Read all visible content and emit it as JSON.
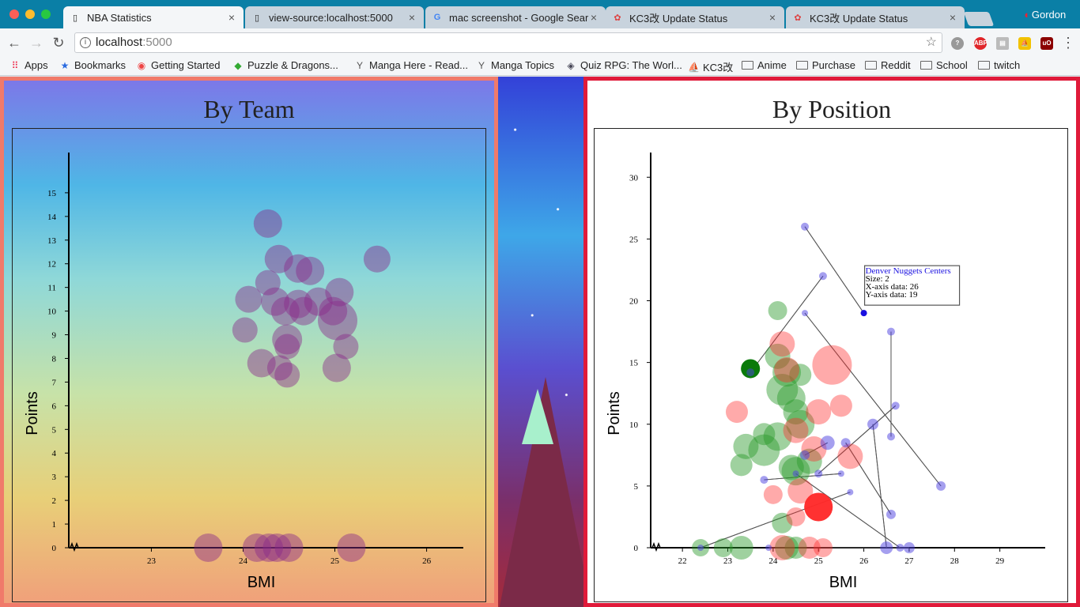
{
  "window": {
    "tabs": [
      {
        "title": "NBA Statistics",
        "favicon": "document-icon",
        "active": true
      },
      {
        "title": "view-source:localhost:5000",
        "favicon": "document-icon",
        "active": false
      },
      {
        "title": "mac screenshot - Google Sear",
        "favicon": "google-icon",
        "active": false
      },
      {
        "title": "KC3改 Update Status",
        "favicon": "kc3-icon",
        "active": false
      },
      {
        "title": "KC3改 Update Status",
        "favicon": "kc3-icon",
        "active": false
      }
    ],
    "profile_name": "Gordon"
  },
  "toolbar": {
    "url_host": "localhost",
    "url_port": ":5000"
  },
  "bookmarks": [
    {
      "label": "Apps",
      "icon": "apps-grid-icon"
    },
    {
      "label": "Bookmarks",
      "icon": "star-icon"
    },
    {
      "label": "Getting Started",
      "icon": "chrome-icon"
    },
    {
      "label": "Puzzle & Dragons...",
      "icon": "pad-icon"
    },
    {
      "label": "Manga Here - Read...",
      "icon": "manga-icon"
    },
    {
      "label": "Manga Topics",
      "icon": "manga-icon"
    },
    {
      "label": "Quiz RPG: The Worl...",
      "icon": "quiz-icon"
    },
    {
      "label": "KC3改",
      "icon": "kc3-icon"
    },
    {
      "label": "Anime",
      "icon": "folder-icon"
    },
    {
      "label": "Purchase",
      "icon": "folder-icon"
    },
    {
      "label": "Reddit",
      "icon": "folder-icon"
    },
    {
      "label": "School",
      "icon": "folder-icon"
    },
    {
      "label": "twitch",
      "icon": "folder-icon"
    }
  ],
  "chart_data": [
    {
      "type": "scatter",
      "title": "By Team",
      "xlabel": "BMI",
      "ylabel": "Points",
      "xlim": [
        22.1,
        26.4
      ],
      "ylim": [
        0,
        16.7
      ],
      "x_ticks": [
        23,
        24,
        25,
        26
      ],
      "y_ticks": [
        0,
        1,
        2,
        3,
        4,
        5,
        6,
        7,
        8,
        9,
        10,
        11,
        12,
        13,
        14,
        15
      ],
      "color": "#8a2a8a",
      "points": [
        {
          "x": 24.27,
          "y": 13.7,
          "r": 18
        },
        {
          "x": 24.39,
          "y": 12.2,
          "r": 18
        },
        {
          "x": 24.6,
          "y": 11.8,
          "r": 18
        },
        {
          "x": 24.73,
          "y": 11.7,
          "r": 18
        },
        {
          "x": 25.46,
          "y": 12.2,
          "r": 17
        },
        {
          "x": 24.27,
          "y": 11.2,
          "r": 16
        },
        {
          "x": 24.06,
          "y": 10.5,
          "r": 17
        },
        {
          "x": 24.35,
          "y": 10.4,
          "r": 18
        },
        {
          "x": 24.6,
          "y": 10.3,
          "r": 18
        },
        {
          "x": 24.82,
          "y": 10.4,
          "r": 18
        },
        {
          "x": 25.05,
          "y": 10.8,
          "r": 18
        },
        {
          "x": 24.46,
          "y": 10.0,
          "r": 18
        },
        {
          "x": 24.66,
          "y": 10.0,
          "r": 18
        },
        {
          "x": 24.98,
          "y": 10.0,
          "r": 18
        },
        {
          "x": 25.03,
          "y": 9.6,
          "r": 25
        },
        {
          "x": 24.02,
          "y": 9.2,
          "r": 16
        },
        {
          "x": 24.48,
          "y": 8.8,
          "r": 19
        },
        {
          "x": 24.48,
          "y": 8.5,
          "r": 16
        },
        {
          "x": 25.12,
          "y": 8.5,
          "r": 16
        },
        {
          "x": 24.2,
          "y": 7.8,
          "r": 18
        },
        {
          "x": 24.4,
          "y": 7.6,
          "r": 16
        },
        {
          "x": 24.48,
          "y": 7.3,
          "r": 16
        },
        {
          "x": 25.02,
          "y": 7.6,
          "r": 18
        },
        {
          "x": 23.62,
          "y": 0,
          "r": 18
        },
        {
          "x": 24.15,
          "y": 0,
          "r": 18
        },
        {
          "x": 24.28,
          "y": 0,
          "r": 18
        },
        {
          "x": 24.37,
          "y": 0,
          "r": 18
        },
        {
          "x": 24.5,
          "y": 0,
          "r": 18
        },
        {
          "x": 25.18,
          "y": 0,
          "r": 18
        }
      ]
    },
    {
      "type": "scatter",
      "title": "By Position",
      "xlabel": "BMI",
      "ylabel": "Points",
      "xlim": [
        21.3,
        30.0
      ],
      "ylim": [
        0,
        32
      ],
      "x_ticks": [
        22,
        23,
        24,
        25,
        26,
        27,
        28,
        29
      ],
      "y_ticks": [
        0,
        5,
        10,
        15,
        20,
        25,
        30
      ],
      "colors": {
        "green": "#2a9a2a",
        "red": "#ff2a2a",
        "blue": "#4b3fe0"
      },
      "tooltip": {
        "title": "Denver Nuggets Centers",
        "size_label": "Size: 2",
        "x_label": "X-axis data: 26",
        "y_label": "Y-axis data: 19"
      },
      "green_points": [
        {
          "x": 24.1,
          "y": 19.2,
          "r": 12
        },
        {
          "x": 24.1,
          "y": 15.5,
          "r": 16
        },
        {
          "x": 23.5,
          "y": 14.5,
          "r": 12
        },
        {
          "x": 24.3,
          "y": 14.2,
          "r": 18
        },
        {
          "x": 24.6,
          "y": 14.0,
          "r": 14
        },
        {
          "x": 24.2,
          "y": 12.8,
          "r": 20
        },
        {
          "x": 24.4,
          "y": 12.1,
          "r": 18
        },
        {
          "x": 24.5,
          "y": 11.0,
          "r": 16
        },
        {
          "x": 24.6,
          "y": 10.0,
          "r": 18
        },
        {
          "x": 23.8,
          "y": 9.2,
          "r": 14
        },
        {
          "x": 24.1,
          "y": 9.0,
          "r": 18
        },
        {
          "x": 23.4,
          "y": 8.2,
          "r": 16
        },
        {
          "x": 23.8,
          "y": 7.9,
          "r": 20
        },
        {
          "x": 24.4,
          "y": 6.5,
          "r": 16
        },
        {
          "x": 24.5,
          "y": 6.2,
          "r": 18
        },
        {
          "x": 24.8,
          "y": 7.0,
          "r": 16
        },
        {
          "x": 23.3,
          "y": 6.7,
          "r": 14
        },
        {
          "x": 24.2,
          "y": 2.0,
          "r": 13
        },
        {
          "x": 22.4,
          "y": 0,
          "r": 11
        },
        {
          "x": 22.9,
          "y": 0,
          "r": 12
        },
        {
          "x": 23.3,
          "y": 0,
          "r": 15
        },
        {
          "x": 24.3,
          "y": 0,
          "r": 15
        },
        {
          "x": 24.5,
          "y": 0,
          "r": 14
        }
      ],
      "dark_green_points": [
        {
          "x": 23.5,
          "y": 14.5,
          "r": 12
        }
      ],
      "red_points": [
        {
          "x": 25.3,
          "y": 14.8,
          "r": 25
        },
        {
          "x": 24.2,
          "y": 16.5,
          "r": 16
        },
        {
          "x": 24.3,
          "y": 14.4,
          "r": 16
        },
        {
          "x": 23.2,
          "y": 11.0,
          "r": 14
        },
        {
          "x": 25.0,
          "y": 11.0,
          "r": 16
        },
        {
          "x": 25.5,
          "y": 11.5,
          "r": 14
        },
        {
          "x": 24.5,
          "y": 9.5,
          "r": 16
        },
        {
          "x": 24.9,
          "y": 8.0,
          "r": 16
        },
        {
          "x": 25.7,
          "y": 7.4,
          "r": 16
        },
        {
          "x": 24.0,
          "y": 4.3,
          "r": 12
        },
        {
          "x": 24.6,
          "y": 4.6,
          "r": 16
        },
        {
          "x": 24.5,
          "y": 2.5,
          "r": 12
        },
        {
          "x": 25.0,
          "y": 3.3,
          "r": 18
        },
        {
          "x": 24.2,
          "y": 0,
          "r": 16
        },
        {
          "x": 24.8,
          "y": 0,
          "r": 14
        },
        {
          "x": 25.1,
          "y": 0,
          "r": 12
        }
      ],
      "blue_points": [
        {
          "x": 24.7,
          "y": 26.0,
          "r": 5
        },
        {
          "x": 25.1,
          "y": 22.0,
          "r": 5
        },
        {
          "x": 24.7,
          "y": 19.0,
          "r": 4
        },
        {
          "x": 26.0,
          "y": 19.0,
          "r": 4
        },
        {
          "x": 26.6,
          "y": 17.5,
          "r": 5
        },
        {
          "x": 26.7,
          "y": 11.5,
          "r": 5
        },
        {
          "x": 26.2,
          "y": 10.0,
          "r": 7
        },
        {
          "x": 26.6,
          "y": 9.0,
          "r": 5
        },
        {
          "x": 25.2,
          "y": 8.5,
          "r": 9
        },
        {
          "x": 25.6,
          "y": 8.5,
          "r": 6
        },
        {
          "x": 23.5,
          "y": 14.2,
          "r": 5
        },
        {
          "x": 24.7,
          "y": 7.5,
          "r": 6
        },
        {
          "x": 23.8,
          "y": 5.5,
          "r": 5
        },
        {
          "x": 24.5,
          "y": 6.0,
          "r": 4
        },
        {
          "x": 25.0,
          "y": 6.0,
          "r": 5
        },
        {
          "x": 25.5,
          "y": 6.0,
          "r": 4
        },
        {
          "x": 25.7,
          "y": 4.5,
          "r": 4
        },
        {
          "x": 27.7,
          "y": 5.0,
          "r": 6
        },
        {
          "x": 26.6,
          "y": 2.7,
          "r": 6
        },
        {
          "x": 22.4,
          "y": 0,
          "r": 4
        },
        {
          "x": 23.9,
          "y": 0,
          "r": 4
        },
        {
          "x": 26.5,
          "y": 0,
          "r": 8
        },
        {
          "x": 26.8,
          "y": 0,
          "r": 5
        },
        {
          "x": 27.0,
          "y": 0,
          "r": 7
        }
      ],
      "highlight_point": {
        "x": 26.0,
        "y": 19.0
      }
    }
  ]
}
